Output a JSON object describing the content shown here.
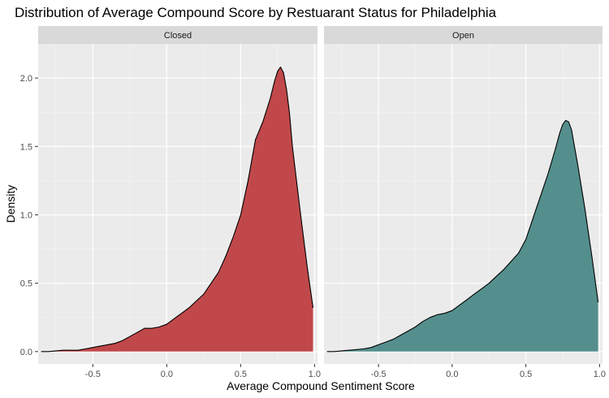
{
  "chart_data": {
    "type": "area",
    "title": "Distribution of Average Compound Score by Restuarant Status for Philadelphia",
    "xlabel": "Average Compound Sentiment Score",
    "ylabel": "Density",
    "xlim": [
      -0.87,
      1.02
    ],
    "ylim": [
      -0.09,
      2.25
    ],
    "x_ticks": [
      -0.5,
      0.0,
      0.5,
      1.0
    ],
    "x_tick_labels": [
      "-0.5",
      "0.0",
      "0.5",
      "1.0"
    ],
    "y_ticks": [
      0.0,
      0.5,
      1.0,
      1.5,
      2.0
    ],
    "y_tick_labels": [
      "0.0",
      "0.5",
      "1.0",
      "1.5",
      "2.0"
    ],
    "grid": true,
    "legend": "none",
    "panels": [
      {
        "label": "Closed",
        "color": "#C0484A",
        "x": [
          -0.85,
          -0.8,
          -0.7,
          -0.6,
          -0.55,
          -0.5,
          -0.45,
          -0.4,
          -0.35,
          -0.3,
          -0.25,
          -0.2,
          -0.15,
          -0.1,
          -0.05,
          0.0,
          0.05,
          0.1,
          0.15,
          0.2,
          0.25,
          0.3,
          0.35,
          0.4,
          0.45,
          0.5,
          0.55,
          0.6,
          0.65,
          0.7,
          0.73,
          0.75,
          0.77,
          0.79,
          0.81,
          0.83,
          0.85,
          0.9,
          0.95,
          0.99
        ],
        "y": [
          0.0,
          0.0,
          0.01,
          0.01,
          0.02,
          0.03,
          0.04,
          0.05,
          0.06,
          0.08,
          0.11,
          0.14,
          0.17,
          0.17,
          0.18,
          0.2,
          0.24,
          0.28,
          0.32,
          0.37,
          0.42,
          0.5,
          0.58,
          0.7,
          0.84,
          1.0,
          1.25,
          1.55,
          1.68,
          1.85,
          1.98,
          2.05,
          2.08,
          2.04,
          1.92,
          1.75,
          1.5,
          1.05,
          0.62,
          0.32
        ]
      },
      {
        "label": "Open",
        "color": "#548F8D",
        "x": [
          -0.85,
          -0.8,
          -0.7,
          -0.6,
          -0.55,
          -0.5,
          -0.45,
          -0.4,
          -0.35,
          -0.3,
          -0.25,
          -0.2,
          -0.15,
          -0.1,
          -0.05,
          0.0,
          0.05,
          0.1,
          0.15,
          0.2,
          0.25,
          0.3,
          0.35,
          0.4,
          0.45,
          0.5,
          0.55,
          0.6,
          0.65,
          0.7,
          0.73,
          0.75,
          0.77,
          0.79,
          0.81,
          0.83,
          0.85,
          0.9,
          0.95,
          0.99
        ],
        "y": [
          0.0,
          0.0,
          0.01,
          0.02,
          0.03,
          0.05,
          0.07,
          0.09,
          0.12,
          0.15,
          0.18,
          0.22,
          0.25,
          0.27,
          0.28,
          0.3,
          0.34,
          0.38,
          0.42,
          0.46,
          0.5,
          0.55,
          0.6,
          0.66,
          0.72,
          0.82,
          0.98,
          1.14,
          1.3,
          1.48,
          1.6,
          1.66,
          1.69,
          1.68,
          1.62,
          1.5,
          1.38,
          1.05,
          0.68,
          0.36
        ]
      }
    ]
  }
}
